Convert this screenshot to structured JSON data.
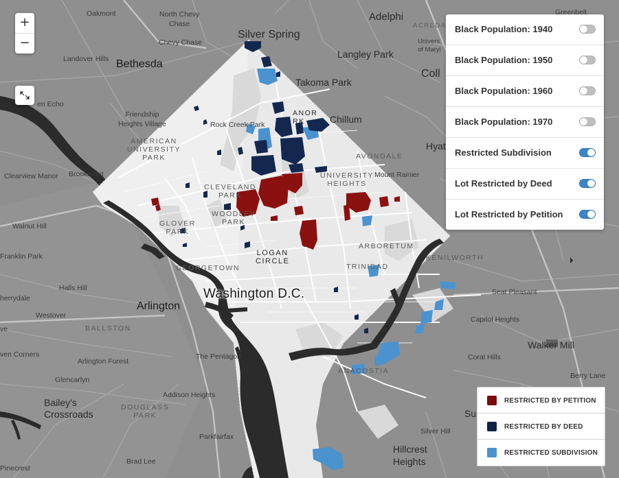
{
  "map": {
    "city_label": "Washington D.C.",
    "labels": {
      "silver_spring": "Silver Spring",
      "bethesda": "Bethesda",
      "arlington": "Arlington",
      "takoma_park": "Takoma Park",
      "chillum": "Chillum",
      "langley_park": "Langley Park",
      "adelphi": "Adelphi",
      "oakmont": "Oakmont",
      "north_chevy_chase": "North Chevy\nChase",
      "chevy_chase": "Chevy Chase",
      "landover_hills": "Landover Hills",
      "friendship_heights": "Friendship\nHeights Village",
      "rock_creek_park": "Rock Creek Park",
      "brookmont": "Brookmont",
      "glen_echo": "en Echo",
      "clearview_manor": "Clearview Manor",
      "mount_rainier": "Mount Rainier",
      "avondale": "AVONDALE",
      "university_heights": "UNIVERSITY\nHEIGHTS",
      "american_university_park": "AMERICAN\nUNIVERSITY\nPARK",
      "cleveland_park": "CLEVELAND\nPARK",
      "woodley_park": "WOODLEY\nPARK",
      "glover_park": "GLOVER\nPARK",
      "logan_circle": "LOGAN\nCIRCLE",
      "georgetown": "GEORGETOWN",
      "manor_park": "ANOR\nRK",
      "arboretum": "ARBORETUM",
      "trinidad": "TRINIDAD",
      "kenilworth": "KENILWORTH",
      "anacostia": "ANACOSTIA",
      "seat_pleasant": "Seat Pleasant",
      "capitol_heights": "Capitol Heights",
      "walker_mill": "Walker Mill",
      "coral_hills": "Coral Hills",
      "berry_lane": "Berry Lane",
      "silver_hill": "Silver Hill",
      "hillcrest_heights": "Hillcrest\nHeights",
      "the_pentagon": "The Pentagon",
      "arlington_forest": "Arlington Forest",
      "greencarlyn": "Glencarlyn",
      "baileys_crossroads": "Bailey's\nCrossroads",
      "douglass_park": "DOUGLASS\nPARK",
      "addison_heights": "Addison Heights",
      "ballston": "BALLSTON",
      "westover": "Westover",
      "halls_hill": "Halls Hill",
      "franklin_park": "Franklin Park",
      "cherrydale": "herrydale",
      "seven_corners": "ven Corners",
      "pinecrest": "Pinecrest",
      "brad_lee": "Brad Lee",
      "parkfairfax": "Parkfairfax",
      "walnut_hill": "Walnut Hill",
      "coll": "Coll",
      "hyatt": "Hyat",
      "su": "Su",
      "ve": "ve",
      "ng": "ng",
      "hills": "lls",
      "greenbelt": "Greenbelt",
      "acredale": "ACREDA",
      "univ_md": "Univers\nof Maryl",
      "mid_md": "h Chevy"
    }
  },
  "controls": {
    "zoom_in": "+",
    "zoom_out": "−"
  },
  "layers": [
    {
      "label": "Black Population: 1940",
      "on": false
    },
    {
      "label": "Black Population: 1950",
      "on": false
    },
    {
      "label": "Black Population: 1960",
      "on": false
    },
    {
      "label": "Black Population: 1970",
      "on": false
    },
    {
      "label": "Restricted Subdivision",
      "on": true
    },
    {
      "label": "Lot Restricted by Deed",
      "on": true
    },
    {
      "label": "Lot Restricted by Petition",
      "on": true
    }
  ],
  "legend": [
    {
      "label": "RESTRICTED BY PETITION",
      "color": "#7a0c0c"
    },
    {
      "label": "RESTRICTED BY DEED",
      "color": "#0f2244"
    },
    {
      "label": "RESTRICTED SUBDIVISION",
      "color": "#4b93cf"
    }
  ],
  "colors": {
    "petition": "#8b1010",
    "deed": "#14284f",
    "subdivision": "#4b93cf",
    "water": "#2b2b2b",
    "land": "#8d8d8d",
    "dc": "#efefef"
  }
}
